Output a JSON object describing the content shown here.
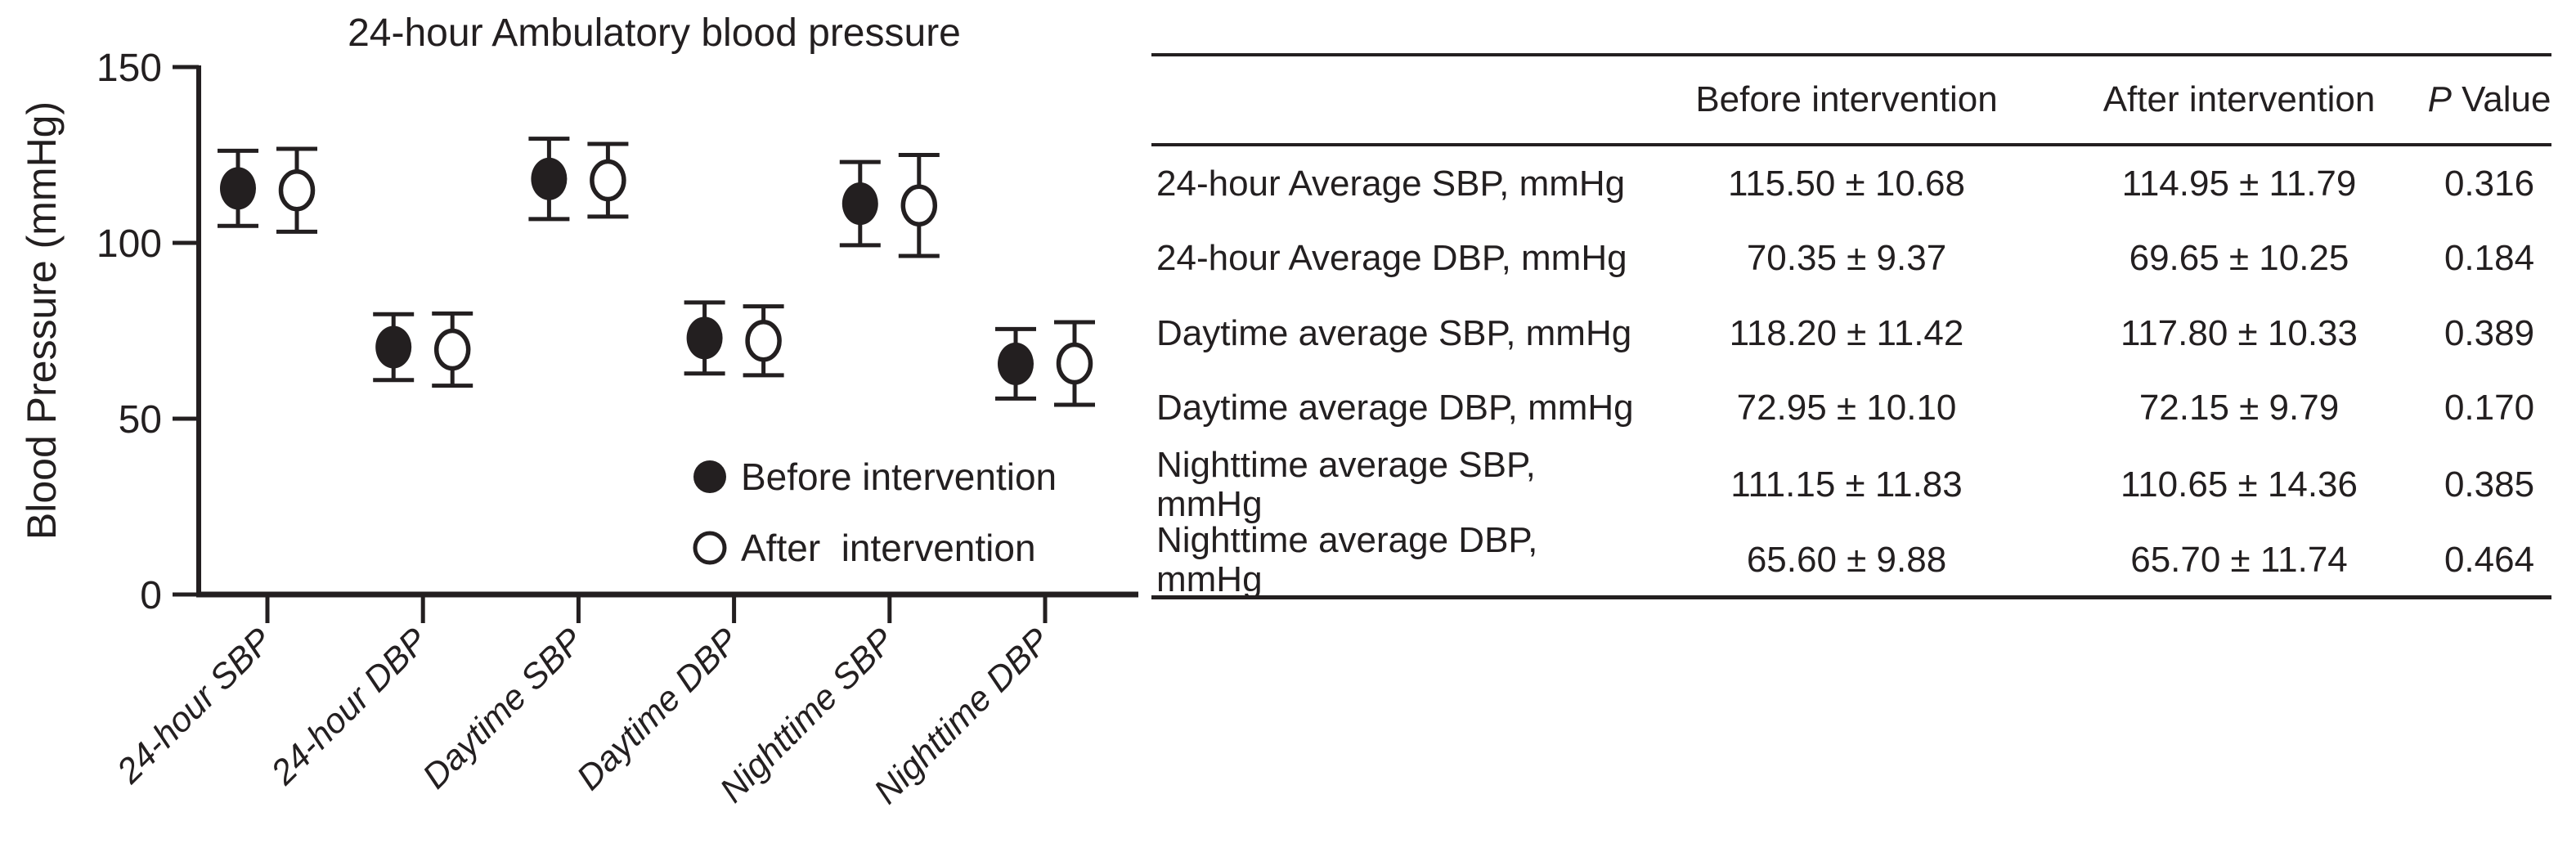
{
  "figure": {
    "background": "#ffffff",
    "ink_color": "#231f20"
  },
  "chart_data": {
    "type": "scatter",
    "title": "24-hour Ambulatory blood pressure",
    "xlabel": "",
    "ylabel": "Blood Pressure (mmHg)",
    "ylim": [
      0,
      150
    ],
    "yticks": [
      0,
      50,
      100,
      150
    ],
    "grid": false,
    "error_bars": "mean ± SD",
    "legend_position": "inside-bottom-right",
    "categories": [
      "24-hour SBP",
      "24-hour DBP",
      "Daytime SBP",
      "Daytime DBP",
      "Nighttime SBP",
      "Nighttime DBP"
    ],
    "series": [
      {
        "name": "Before intervention",
        "marker": "filled-circle",
        "means": [
          115.5,
          70.35,
          118.2,
          72.95,
          111.15,
          65.6
        ],
        "sd": [
          10.68,
          9.37,
          11.42,
          10.1,
          11.83,
          9.88
        ]
      },
      {
        "name": "After  intervention",
        "marker": "open-circle",
        "means": [
          114.95,
          69.65,
          117.8,
          72.15,
          110.65,
          65.7
        ],
        "sd": [
          11.79,
          10.25,
          10.33,
          9.79,
          14.36,
          11.74
        ]
      }
    ]
  },
  "table": {
    "headers": {
      "rowlabel": "",
      "before": "Before intervention",
      "after": "After intervention",
      "p_italic": "P",
      "p_rest": " Value"
    },
    "rows": [
      {
        "label": "24-hour Average SBP, mmHg",
        "before": "115.50 ± 10.68",
        "after": "114.95 ± 11.79",
        "p": "0.316"
      },
      {
        "label": "24-hour Average DBP, mmHg",
        "before": "70.35 ± 9.37",
        "after": "69.65 ± 10.25",
        "p": "0.184"
      },
      {
        "label": "Daytime average SBP, mmHg",
        "before": "118.20 ± 11.42",
        "after": "117.80 ± 10.33",
        "p": "0.389"
      },
      {
        "label": "Daytime average DBP, mmHg",
        "before": "72.95 ± 10.10",
        "after": "72.15 ± 9.79",
        "p": "0.170"
      },
      {
        "label": "Nighttime average SBP, mmHg",
        "before": "111.15 ± 11.83",
        "after": "110.65 ± 14.36",
        "p": "0.385"
      },
      {
        "label": "Nighttime average DBP, mmHg",
        "before": "65.60 ± 9.88",
        "after": "65.70 ± 11.74",
        "p": "0.464"
      }
    ]
  }
}
